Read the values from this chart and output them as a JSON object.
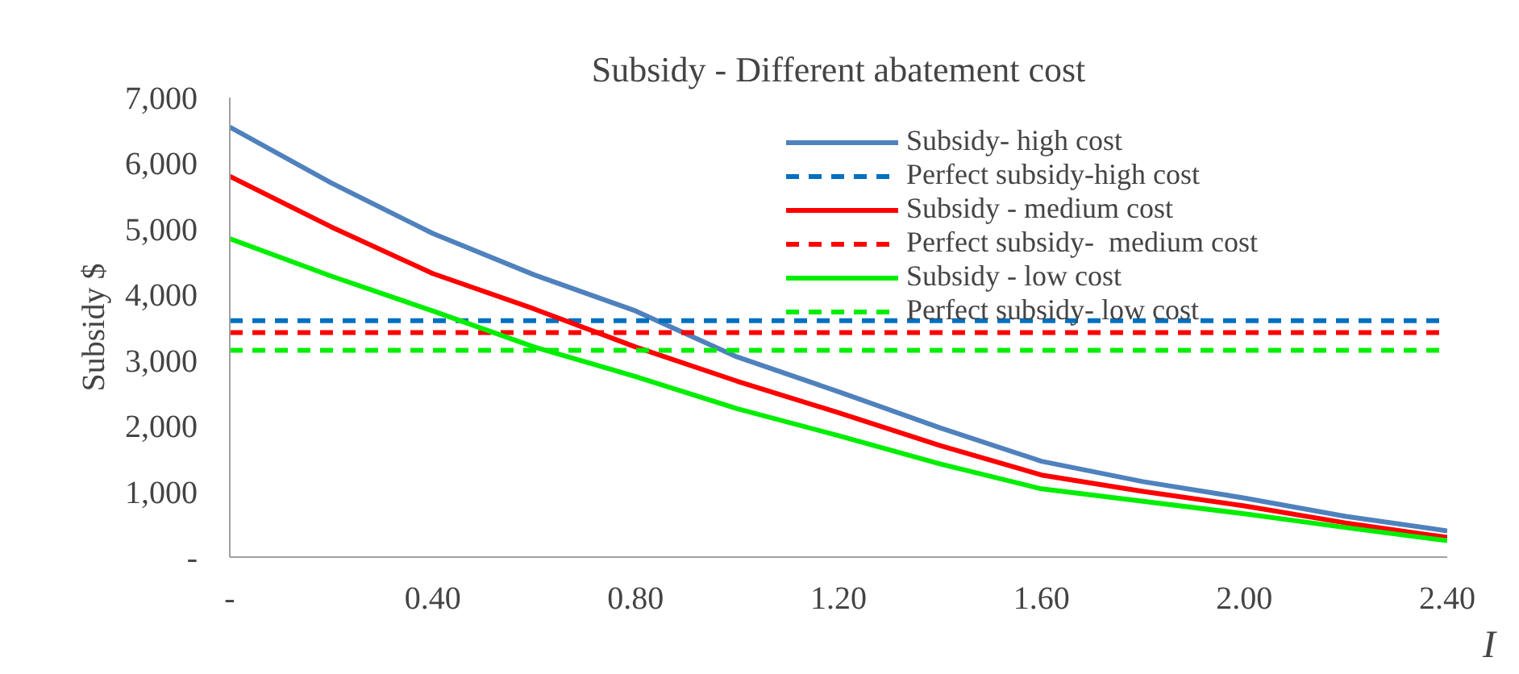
{
  "chart_data": {
    "type": "line",
    "title": "Subsidy - Different abatement cost",
    "xlabel": "I",
    "ylabel": "Subsidy $",
    "x": [
      0,
      0.2,
      0.4,
      0.6,
      0.8,
      1.0,
      1.2,
      1.4,
      1.6,
      1.8,
      2.0,
      2.2,
      2.4
    ],
    "series": [
      {
        "name": "Subsidy- high cost",
        "color": "#4f81bd",
        "line_style": "solid",
        "values": [
          6550,
          5700,
          4930,
          4300,
          3750,
          3050,
          2520,
          1970,
          1460,
          1150,
          900,
          620,
          400
        ]
      },
      {
        "name": "Perfect subsidy-high cost",
        "color": "#0070c0",
        "line_style": "dashed",
        "values": [
          3600,
          3600,
          3600,
          3600,
          3600,
          3600,
          3600,
          3600,
          3600,
          3600,
          3600,
          3600,
          3600
        ]
      },
      {
        "name": "Subsidy - medium cost",
        "color": "#ff0000",
        "line_style": "solid",
        "values": [
          5800,
          5030,
          4320,
          3780,
          3200,
          2680,
          2200,
          1700,
          1250,
          1000,
          780,
          520,
          300
        ]
      },
      {
        "name": "Perfect subsidy-  medium cost",
        "color": "#ff0000",
        "line_style": "dashed",
        "values": [
          3420,
          3420,
          3420,
          3420,
          3420,
          3420,
          3420,
          3420,
          3420,
          3420,
          3420,
          3420,
          3420
        ]
      },
      {
        "name": "Subsidy - low cost",
        "color": "#00ee00",
        "line_style": "solid",
        "values": [
          4850,
          4280,
          3750,
          3200,
          2750,
          2260,
          1850,
          1420,
          1040,
          850,
          660,
          450,
          250
        ]
      },
      {
        "name": "Perfect subsidy- low cost",
        "color": "#00ee00",
        "line_style": "dashed",
        "values": [
          3150,
          3150,
          3150,
          3150,
          3150,
          3150,
          3150,
          3150,
          3150,
          3150,
          3150,
          3150,
          3150
        ]
      }
    ],
    "xlim": [
      0,
      2.4
    ],
    "xticks": [
      {
        "value": 0,
        "label": "-"
      },
      {
        "value": 0.4,
        "label": "0.40"
      },
      {
        "value": 0.8,
        "label": "0.80"
      },
      {
        "value": 1.2,
        "label": "1.20"
      },
      {
        "value": 1.6,
        "label": "1.60"
      },
      {
        "value": 2.0,
        "label": "2.00"
      },
      {
        "value": 2.4,
        "label": "2.40"
      }
    ],
    "ylim": [
      0,
      7000
    ],
    "yticks": [
      {
        "value": 0,
        "label": "-"
      },
      {
        "value": 1000,
        "label": "1,000"
      },
      {
        "value": 2000,
        "label": "2,000"
      },
      {
        "value": 3000,
        "label": "3,000"
      },
      {
        "value": 4000,
        "label": "4,000"
      },
      {
        "value": 5000,
        "label": "5,000"
      },
      {
        "value": 6000,
        "label": "6,000"
      },
      {
        "value": 7000,
        "label": "7,000"
      }
    ],
    "grid": false,
    "legend": "top right",
    "marker": "none"
  }
}
